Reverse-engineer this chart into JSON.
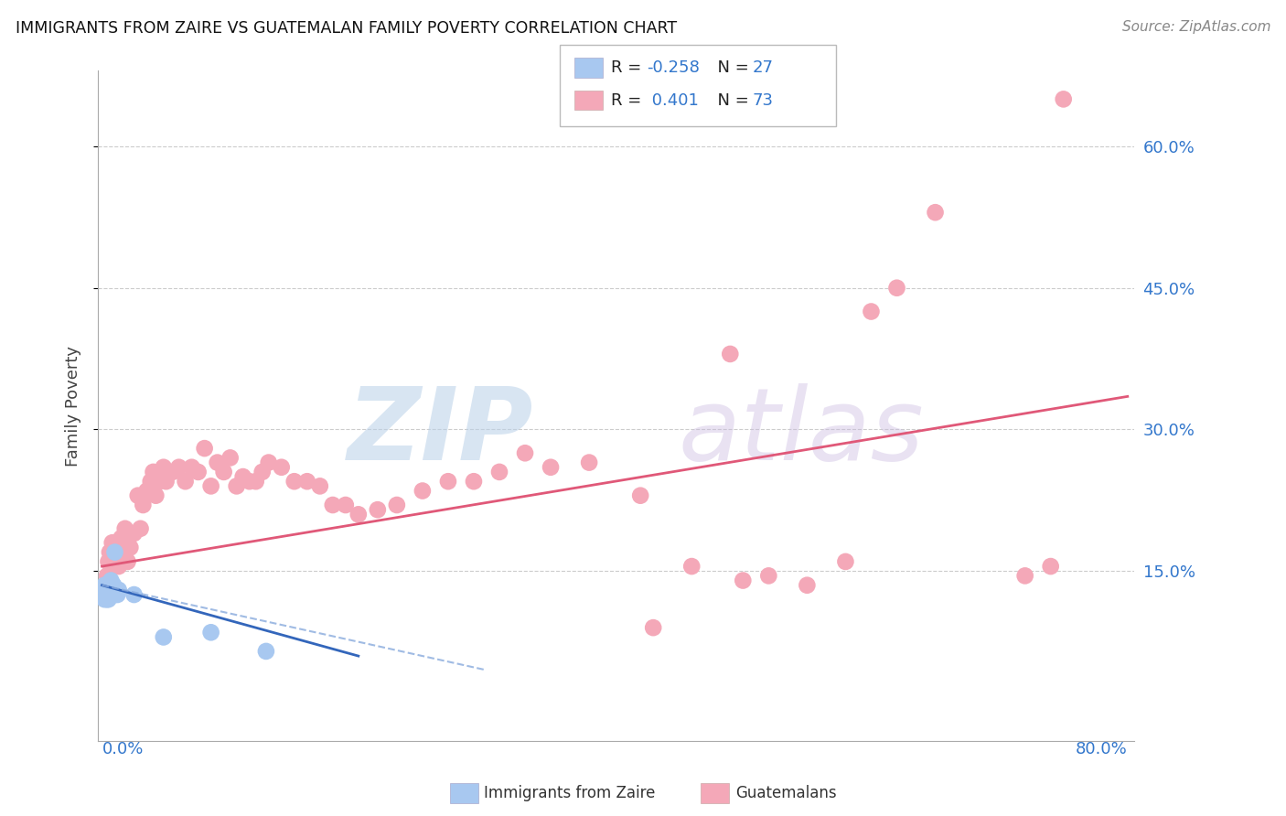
{
  "title": "IMMIGRANTS FROM ZAIRE VS GUATEMALAN FAMILY POVERTY CORRELATION CHART",
  "source": "Source: ZipAtlas.com",
  "ylabel": "Family Poverty",
  "ytick_values": [
    0.15,
    0.3,
    0.45,
    0.6
  ],
  "ytick_labels": [
    "15.0%",
    "30.0%",
    "45.0%",
    "60.0%"
  ],
  "xlim": [
    0.0,
    0.8
  ],
  "ylim": [
    0.0,
    0.68
  ],
  "zaire_color": "#a8c8f0",
  "guatemalan_color": "#f4a8b8",
  "zaire_line_color": "#3366bb",
  "guatemalan_line_color": "#e05878",
  "zaire_r": -0.258,
  "zaire_n": 27,
  "guatemalan_r": 0.401,
  "guatemalan_n": 73,
  "zaire_x": [
    0.001,
    0.002,
    0.002,
    0.003,
    0.003,
    0.004,
    0.004,
    0.005,
    0.005,
    0.005,
    0.006,
    0.006,
    0.007,
    0.007,
    0.008,
    0.008,
    0.009,
    0.009,
    0.01,
    0.01,
    0.011,
    0.012,
    0.013,
    0.025,
    0.048,
    0.085,
    0.128
  ],
  "zaire_y": [
    0.125,
    0.12,
    0.135,
    0.13,
    0.125,
    0.12,
    0.135,
    0.13,
    0.125,
    0.12,
    0.13,
    0.125,
    0.13,
    0.14,
    0.125,
    0.135,
    0.135,
    0.13,
    0.17,
    0.125,
    0.13,
    0.125,
    0.13,
    0.125,
    0.08,
    0.085,
    0.065
  ],
  "zaire_line_x": [
    0.0,
    0.2
  ],
  "zaire_line_y": [
    0.135,
    0.06
  ],
  "guatemalan_line_x": [
    0.0,
    0.8
  ],
  "guatemalan_line_y": [
    0.155,
    0.335
  ],
  "guatemalan_x": [
    0.004,
    0.005,
    0.006,
    0.007,
    0.008,
    0.009,
    0.01,
    0.011,
    0.012,
    0.013,
    0.014,
    0.015,
    0.016,
    0.018,
    0.02,
    0.022,
    0.025,
    0.028,
    0.03,
    0.032,
    0.035,
    0.038,
    0.04,
    0.042,
    0.045,
    0.048,
    0.05,
    0.055,
    0.06,
    0.065,
    0.07,
    0.075,
    0.08,
    0.085,
    0.09,
    0.095,
    0.1,
    0.105,
    0.11,
    0.115,
    0.12,
    0.125,
    0.13,
    0.14,
    0.15,
    0.16,
    0.17,
    0.18,
    0.19,
    0.2,
    0.215,
    0.23,
    0.25,
    0.27,
    0.29,
    0.31,
    0.33,
    0.35,
    0.38,
    0.42,
    0.46,
    0.5,
    0.52,
    0.55,
    0.58,
    0.49,
    0.43,
    0.6,
    0.62,
    0.65,
    0.72,
    0.74,
    0.75
  ],
  "guatemalan_y": [
    0.145,
    0.16,
    0.17,
    0.155,
    0.18,
    0.16,
    0.165,
    0.175,
    0.18,
    0.155,
    0.165,
    0.185,
    0.17,
    0.195,
    0.16,
    0.175,
    0.19,
    0.23,
    0.195,
    0.22,
    0.235,
    0.245,
    0.255,
    0.23,
    0.245,
    0.26,
    0.245,
    0.255,
    0.26,
    0.245,
    0.26,
    0.255,
    0.28,
    0.24,
    0.265,
    0.255,
    0.27,
    0.24,
    0.25,
    0.245,
    0.245,
    0.255,
    0.265,
    0.26,
    0.245,
    0.245,
    0.24,
    0.22,
    0.22,
    0.21,
    0.215,
    0.22,
    0.235,
    0.245,
    0.245,
    0.255,
    0.275,
    0.26,
    0.265,
    0.23,
    0.155,
    0.14,
    0.145,
    0.135,
    0.16,
    0.38,
    0.09,
    0.425,
    0.45,
    0.53,
    0.145,
    0.155,
    0.65
  ]
}
